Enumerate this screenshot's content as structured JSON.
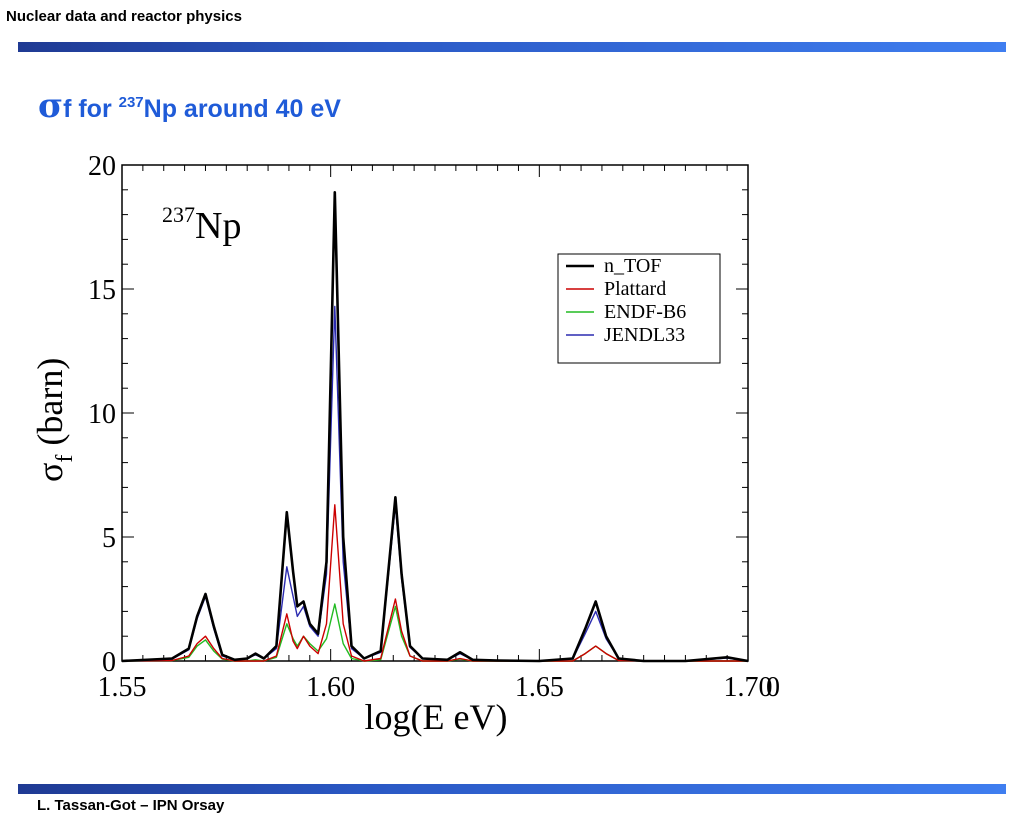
{
  "header": {
    "section": "Nuclear data and reactor physics"
  },
  "slide": {
    "title_sigma": "σ",
    "title_f": "f",
    "title_for": " for ",
    "title_mass": "237",
    "title_rest": "Np around 40 eV"
  },
  "footer": {
    "author": "L. Tassan-Got – IPN Orsay"
  },
  "colors": {
    "accent": "#1f5bd8",
    "bar_start": "#1f3a93",
    "bar_end": "#3f7ef0"
  },
  "chart_data": {
    "type": "line",
    "annotation": {
      "mass": "237",
      "element": "Np"
    },
    "ylabel_symbol": "σ",
    "ylabel_sub": "f",
    "ylabel_unit": " (barn)",
    "xlabel": "log(E eV)",
    "xlim": [
      1.55,
      1.7
    ],
    "ylim": [
      0,
      20
    ],
    "xticks": [
      "1.55",
      "1.60",
      "1.65",
      "1.70"
    ],
    "x_extra_tick": "0",
    "yticks": [
      "0",
      "5",
      "10",
      "15",
      "20"
    ],
    "grid": false,
    "legend_position": "top-right",
    "x": [
      1.55,
      1.562,
      1.566,
      1.568,
      1.57,
      1.572,
      1.574,
      1.577,
      1.58,
      1.582,
      1.584,
      1.587,
      1.5895,
      1.591,
      1.592,
      1.5935,
      1.595,
      1.597,
      1.599,
      1.601,
      1.603,
      1.605,
      1.608,
      1.612,
      1.6155,
      1.617,
      1.619,
      1.622,
      1.628,
      1.631,
      1.634,
      1.64,
      1.65,
      1.658,
      1.661,
      1.6635,
      1.666,
      1.669,
      1.675,
      1.685,
      1.695,
      1.7
    ],
    "series": [
      {
        "name": "n_TOF",
        "color": "#000000",
        "values": [
          0,
          0.1,
          0.5,
          1.8,
          2.7,
          1.4,
          0.25,
          0.05,
          0.1,
          0.3,
          0.1,
          0.6,
          6.0,
          3.6,
          2.2,
          2.4,
          1.5,
          1.1,
          4.0,
          18.9,
          5.0,
          0.6,
          0.1,
          0.4,
          6.6,
          3.5,
          0.6,
          0.1,
          0.05,
          0.35,
          0.05,
          0.02,
          0,
          0.1,
          1.3,
          2.4,
          1.0,
          0.1,
          0,
          0,
          0.15,
          0
        ]
      },
      {
        "name": "Plattard",
        "color": "#cc0000",
        "values": [
          0,
          0.02,
          0.2,
          0.7,
          1.0,
          0.5,
          0.1,
          0,
          0,
          0,
          0,
          0.2,
          1.9,
          0.8,
          0.5,
          1.0,
          0.6,
          0.3,
          1.5,
          6.3,
          1.5,
          0.2,
          0,
          0.1,
          2.5,
          1.2,
          0.2,
          0,
          0,
          0.1,
          0,
          0,
          0,
          0,
          0.3,
          0.6,
          0.3,
          0.02,
          0,
          0,
          0,
          0
        ]
      },
      {
        "name": "ENDF-B6",
        "color": "#22bb22",
        "values": [
          0,
          0.02,
          0.15,
          0.6,
          0.85,
          0.4,
          0.08,
          0,
          0,
          0.05,
          0,
          0.15,
          1.5,
          0.9,
          0.6,
          1.0,
          0.7,
          0.4,
          0.9,
          2.3,
          0.7,
          0.1,
          0,
          0.05,
          2.2,
          1.0,
          0.2,
          0,
          0,
          0.08,
          0,
          0,
          0,
          0,
          0.3,
          0.6,
          0.3,
          0.02,
          0,
          0,
          0,
          0
        ]
      },
      {
        "name": "JENDL33",
        "color": "#2b2bb0",
        "values": [
          0,
          0.08,
          0.45,
          1.7,
          2.6,
          1.3,
          0.2,
          0.05,
          0.1,
          0.25,
          0.1,
          0.5,
          3.8,
          2.6,
          1.8,
          2.2,
          1.4,
          1.0,
          3.5,
          14.3,
          4.0,
          0.5,
          0.1,
          0.35,
          6.3,
          3.3,
          0.55,
          0.1,
          0.05,
          0.3,
          0.05,
          0.02,
          0,
          0.08,
          1.1,
          2.0,
          0.9,
          0.1,
          0,
          0,
          0.12,
          0
        ]
      }
    ]
  }
}
